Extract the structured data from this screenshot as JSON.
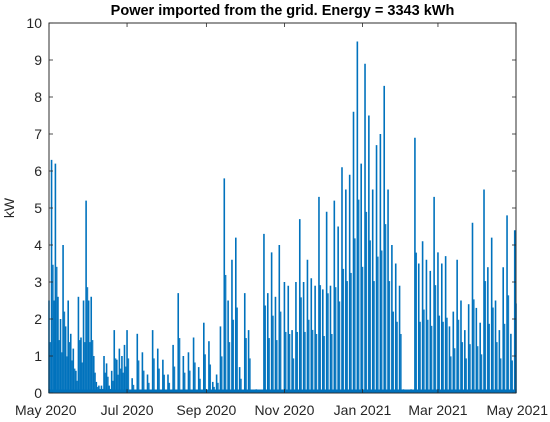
{
  "chart_data": {
    "type": "area",
    "title": "Power imported from the grid. Energy = 3343 kWh",
    "xlabel": "",
    "ylabel": "kW",
    "x_type": "date",
    "xlim": [
      "2020-05-01",
      "2021-05-01"
    ],
    "ylim": [
      0,
      10
    ],
    "x_ticks": [
      "2020-05-01",
      "2020-07-01",
      "2020-09-01",
      "2020-11-01",
      "2021-01-01",
      "2021-03-01",
      "2021-05-01"
    ],
    "x_tick_labels": [
      "May 2020",
      "Jul 2020",
      "Sep 2020",
      "Nov 2020",
      "Jan 2021",
      "Mar 2021",
      "May 2021"
    ],
    "y_ticks": [
      0,
      1,
      2,
      3,
      4,
      5,
      6,
      7,
      8,
      9,
      10
    ],
    "grid": false,
    "legend": "none",
    "series": [
      {
        "color": "#0072BD",
        "x": [
          "2020-05-01",
          "2020-05-03",
          "2020-05-05",
          "2020-05-06",
          "2020-05-08",
          "2020-05-10",
          "2020-05-12",
          "2020-05-14",
          "2020-05-16",
          "2020-05-18",
          "2020-05-20",
          "2020-05-22",
          "2020-05-24",
          "2020-05-26",
          "2020-05-28",
          "2020-05-30",
          "2020-06-01",
          "2020-06-03",
          "2020-06-05",
          "2020-06-07",
          "2020-06-09",
          "2020-06-11",
          "2020-06-13",
          "2020-06-15",
          "2020-06-17",
          "2020-06-19",
          "2020-06-21",
          "2020-06-23",
          "2020-06-25",
          "2020-06-27",
          "2020-06-29",
          "2020-07-01",
          "2020-07-05",
          "2020-07-09",
          "2020-07-13",
          "2020-07-17",
          "2020-07-21",
          "2020-07-25",
          "2020-07-29",
          "2020-08-02",
          "2020-08-06",
          "2020-08-10",
          "2020-08-14",
          "2020-08-18",
          "2020-08-22",
          "2020-08-26",
          "2020-08-30",
          "2020-09-03",
          "2020-09-06",
          "2020-09-09",
          "2020-09-12",
          "2020-09-15",
          "2020-09-18",
          "2020-09-21",
          "2020-09-24",
          "2020-09-27",
          "2020-10-01",
          "2020-10-04",
          "2020-10-07",
          "2020-10-10",
          "2020-10-13",
          "2020-10-16",
          "2020-10-19",
          "2020-10-22",
          "2020-10-25",
          "2020-10-28",
          "2020-11-01",
          "2020-11-04",
          "2020-11-07",
          "2020-11-10",
          "2020-11-13",
          "2020-11-16",
          "2020-11-19",
          "2020-11-22",
          "2020-11-25",
          "2020-11-28",
          "2020-12-01",
          "2020-12-04",
          "2020-12-07",
          "2020-12-10",
          "2020-12-13",
          "2020-12-16",
          "2020-12-19",
          "2020-12-22",
          "2020-12-25",
          "2020-12-28",
          "2020-12-31",
          "2021-01-03",
          "2021-01-06",
          "2021-01-09",
          "2021-01-12",
          "2021-01-15",
          "2021-01-18",
          "2021-01-21",
          "2021-01-24",
          "2021-01-27",
          "2021-01-30",
          "2021-02-02",
          "2021-02-05",
          "2021-02-08",
          "2021-02-11",
          "2021-02-14",
          "2021-02-17",
          "2021-02-20",
          "2021-02-23",
          "2021-02-26",
          "2021-03-01",
          "2021-03-04",
          "2021-03-07",
          "2021-03-10",
          "2021-03-13",
          "2021-03-16",
          "2021-03-19",
          "2021-03-22",
          "2021-03-25",
          "2021-03-28",
          "2021-03-31",
          "2021-04-03",
          "2021-04-06",
          "2021-04-09",
          "2021-04-12",
          "2021-04-15",
          "2021-04-18",
          "2021-04-21",
          "2021-04-24",
          "2021-04-27",
          "2021-04-30"
        ],
        "y": [
          2.5,
          6.3,
          2.5,
          6.2,
          2.6,
          2.0,
          4.0,
          1.8,
          2.5,
          1.6,
          1.2,
          0.6,
          2.6,
          1.5,
          2.5,
          5.2,
          2.5,
          2.6,
          1.0,
          0.3,
          0.2,
          0.2,
          1.0,
          0.8,
          0.2,
          0.6,
          1.7,
          0.9,
          1.2,
          1.0,
          1.3,
          1.7,
          0.4,
          1.6,
          1.1,
          0.5,
          1.7,
          1.2,
          0.9,
          0.5,
          1.3,
          2.7,
          1.0,
          1.1,
          1.5,
          0.7,
          1.9,
          1.4,
          0.3,
          0.5,
          1.8,
          5.8,
          2.5,
          3.6,
          4.2,
          0.7,
          2.7,
          1.7,
          0.0,
          0.1,
          0.0,
          4.3,
          2.7,
          3.8,
          2.6,
          4.0,
          3.0,
          2.9,
          1.7,
          3.0,
          4.7,
          3.0,
          3.6,
          3.1,
          2.9,
          5.3,
          2.8,
          4.9,
          2.9,
          5.2,
          4.5,
          6.1,
          5.5,
          5.9,
          7.6,
          9.5,
          6.2,
          8.9,
          7.5,
          5.5,
          6.7,
          7.0,
          8.3,
          5.5,
          4.0,
          3.5,
          2.9,
          0.1,
          0.0,
          0.1,
          6.9,
          3.5,
          4.1,
          3.6,
          3.3,
          5.3,
          3.8,
          3.5,
          3.7,
          1.8,
          2.2,
          3.6,
          2.5,
          1.7,
          2.4,
          4.6,
          2.3,
          1.9,
          5.5,
          3.4,
          4.2,
          2.5,
          1.7,
          3.4,
          4.8,
          1.6,
          4.4
        ]
      }
    ]
  }
}
